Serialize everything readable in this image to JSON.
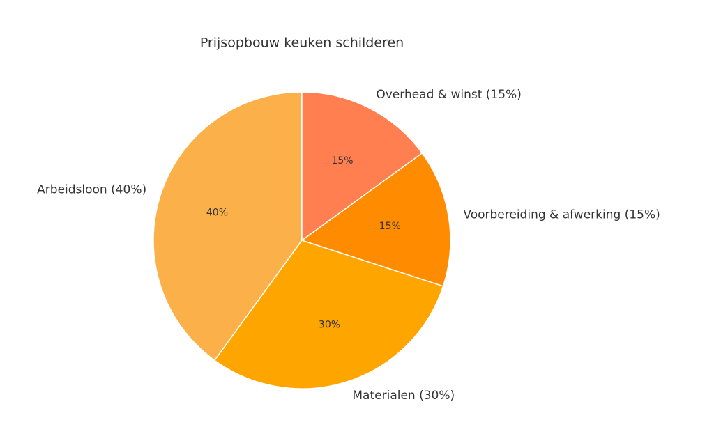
{
  "chart_data": {
    "type": "pie",
    "title": "Prijsopbouw keuken schilderen",
    "categories": [
      "Arbeidsloon (40%)",
      "Materialen (30%)",
      "Voorbereiding & afwerking (15%)",
      "Overhead & winst (15%)"
    ],
    "values": [
      40,
      30,
      15,
      15
    ],
    "value_labels": [
      "40%",
      "30%",
      "15%",
      "15%"
    ],
    "colors": [
      "#fbb04a",
      "#ffa500",
      "#ff8c00",
      "#ff7f50"
    ],
    "startangle": 90
  }
}
